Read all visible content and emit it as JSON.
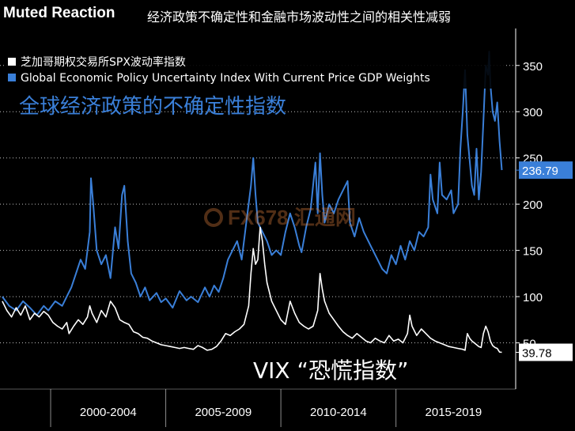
{
  "header": {
    "title_en": "Muted Reaction",
    "title_cn": "经济政策不确定性和金融市场波动性之间的相关性减弱"
  },
  "watermark": {
    "text": "FX678 汇通网"
  },
  "chart_data": {
    "type": "line",
    "title": "Muted Reaction",
    "subtitle": "经济政策不确定性和金融市场波动性之间的相关性减弱",
    "x_range": [
      1997.8,
      2020.2
    ],
    "ylim": [
      0,
      390
    ],
    "y_ticks": [
      50,
      100,
      150,
      200,
      250,
      300,
      350
    ],
    "x_period_labels": [
      "2000-2004",
      "2005-2009",
      "2010-2014",
      "2015-2019"
    ],
    "x_period_centers": [
      2002.5,
      2007.5,
      2012.5,
      2017.5
    ],
    "x_separators": [
      2000,
      2005,
      2010,
      2015
    ],
    "grid": true,
    "legend_position": "top-left",
    "colors": {
      "epu": "#3a7fd8",
      "vix": "#ffffff",
      "grid": "#ffffff"
    },
    "series": [
      {
        "name": "Global Economic Policy Uncertainty Index With Current Price GDP Weights",
        "color": "#3a7fd8",
        "last_value_label": "236.79",
        "points": [
          [
            1997.9,
            100
          ],
          [
            1998.2,
            90
          ],
          [
            1998.5,
            85
          ],
          [
            1998.8,
            95
          ],
          [
            1999.1,
            88
          ],
          [
            1999.4,
            80
          ],
          [
            1999.7,
            90
          ],
          [
            1999.9,
            85
          ],
          [
            2000.2,
            95
          ],
          [
            2000.5,
            90
          ],
          [
            2000.7,
            100
          ],
          [
            2000.9,
            110
          ],
          [
            2001.1,
            125
          ],
          [
            2001.3,
            140
          ],
          [
            2001.5,
            130
          ],
          [
            2001.7,
            170
          ],
          [
            2001.75,
            228
          ],
          [
            2001.85,
            200
          ],
          [
            2002.0,
            150
          ],
          [
            2002.2,
            135
          ],
          [
            2002.4,
            145
          ],
          [
            2002.6,
            120
          ],
          [
            2002.8,
            175
          ],
          [
            2002.95,
            152
          ],
          [
            2003.1,
            210
          ],
          [
            2003.2,
            220
          ],
          [
            2003.35,
            160
          ],
          [
            2003.5,
            125
          ],
          [
            2003.7,
            115
          ],
          [
            2003.9,
            100
          ],
          [
            2004.1,
            110
          ],
          [
            2004.3,
            96
          ],
          [
            2004.6,
            104
          ],
          [
            2004.8,
            94
          ],
          [
            2005.0,
            98
          ],
          [
            2005.3,
            88
          ],
          [
            2005.6,
            106
          ],
          [
            2005.9,
            96
          ],
          [
            2006.1,
            100
          ],
          [
            2006.4,
            94
          ],
          [
            2006.7,
            110
          ],
          [
            2006.9,
            100
          ],
          [
            2007.1,
            112
          ],
          [
            2007.3,
            105
          ],
          [
            2007.5,
            120
          ],
          [
            2007.7,
            140
          ],
          [
            2007.9,
            150
          ],
          [
            2008.1,
            160
          ],
          [
            2008.3,
            140
          ],
          [
            2008.5,
            180
          ],
          [
            2008.7,
            220
          ],
          [
            2008.8,
            250
          ],
          [
            2008.9,
            210
          ],
          [
            2009.0,
            180
          ],
          [
            2009.2,
            170
          ],
          [
            2009.4,
            160
          ],
          [
            2009.6,
            145
          ],
          [
            2009.8,
            150
          ],
          [
            2010.0,
            145
          ],
          [
            2010.2,
            170
          ],
          [
            2010.4,
            190
          ],
          [
            2010.6,
            175
          ],
          [
            2010.8,
            155
          ],
          [
            2010.9,
            148
          ],
          [
            2011.1,
            175
          ],
          [
            2011.3,
            195
          ],
          [
            2011.5,
            245
          ],
          [
            2011.6,
            190
          ],
          [
            2011.7,
            255
          ],
          [
            2011.8,
            210
          ],
          [
            2011.9,
            180
          ],
          [
            2012.1,
            200
          ],
          [
            2012.3,
            190
          ],
          [
            2012.5,
            205
          ],
          [
            2012.7,
            215
          ],
          [
            2012.9,
            225
          ],
          [
            2013.0,
            180
          ],
          [
            2013.2,
            165
          ],
          [
            2013.4,
            185
          ],
          [
            2013.6,
            170
          ],
          [
            2013.8,
            160
          ],
          [
            2014.0,
            150
          ],
          [
            2014.2,
            140
          ],
          [
            2014.4,
            130
          ],
          [
            2014.6,
            125
          ],
          [
            2014.8,
            145
          ],
          [
            2015.0,
            135
          ],
          [
            2015.2,
            155
          ],
          [
            2015.4,
            140
          ],
          [
            2015.6,
            160
          ],
          [
            2015.8,
            150
          ],
          [
            2016.0,
            170
          ],
          [
            2016.2,
            165
          ],
          [
            2016.4,
            175
          ],
          [
            2016.5,
            232
          ],
          [
            2016.6,
            205
          ],
          [
            2016.8,
            190
          ],
          [
            2016.9,
            245
          ],
          [
            2017.0,
            210
          ],
          [
            2017.2,
            205
          ],
          [
            2017.4,
            215
          ],
          [
            2017.5,
            190
          ],
          [
            2017.7,
            200
          ],
          [
            2017.8,
            260
          ],
          [
            2017.9,
            300
          ],
          [
            2018.0,
            345
          ],
          [
            2018.1,
            275
          ],
          [
            2018.3,
            220
          ],
          [
            2018.4,
            210
          ],
          [
            2018.5,
            260
          ],
          [
            2018.6,
            205
          ],
          [
            2018.7,
            235
          ],
          [
            2018.8,
            290
          ],
          [
            2018.9,
            350
          ],
          [
            2019.0,
            340
          ],
          [
            2019.05,
            365
          ],
          [
            2019.1,
            330
          ],
          [
            2019.2,
            300
          ],
          [
            2019.3,
            290
          ],
          [
            2019.4,
            310
          ],
          [
            2019.5,
            268
          ],
          [
            2019.6,
            236.79
          ]
        ]
      },
      {
        "name": "芝加哥期权交易所SPX波动率指数",
        "color": "#ffffff",
        "last_value_label": "39.78",
        "points": [
          [
            1997.9,
            95
          ],
          [
            1998.1,
            85
          ],
          [
            1998.3,
            78
          ],
          [
            1998.5,
            88
          ],
          [
            1998.7,
            80
          ],
          [
            1998.9,
            90
          ],
          [
            1999.1,
            75
          ],
          [
            1999.3,
            82
          ],
          [
            1999.5,
            78
          ],
          [
            1999.7,
            84
          ],
          [
            1999.9,
            80
          ],
          [
            2000.1,
            72
          ],
          [
            2000.3,
            68
          ],
          [
            2000.5,
            65
          ],
          [
            2000.7,
            72
          ],
          [
            2000.8,
            60
          ],
          [
            2001.0,
            68
          ],
          [
            2001.2,
            75
          ],
          [
            2001.4,
            70
          ],
          [
            2001.6,
            78
          ],
          [
            2001.7,
            90
          ],
          [
            2001.8,
            82
          ],
          [
            2002.0,
            72
          ],
          [
            2002.2,
            85
          ],
          [
            2002.4,
            78
          ],
          [
            2002.6,
            95
          ],
          [
            2002.8,
            88
          ],
          [
            2003.0,
            75
          ],
          [
            2003.2,
            72
          ],
          [
            2003.4,
            70
          ],
          [
            2003.6,
            62
          ],
          [
            2003.8,
            60
          ],
          [
            2004.0,
            56
          ],
          [
            2004.2,
            55
          ],
          [
            2004.4,
            52
          ],
          [
            2004.6,
            50
          ],
          [
            2004.8,
            48
          ],
          [
            2005.0,
            47
          ],
          [
            2005.2,
            46
          ],
          [
            2005.4,
            45
          ],
          [
            2005.6,
            44
          ],
          [
            2005.8,
            45
          ],
          [
            2006.0,
            44
          ],
          [
            2006.2,
            43
          ],
          [
            2006.4,
            47
          ],
          [
            2006.6,
            45
          ],
          [
            2006.8,
            42
          ],
          [
            2007.0,
            43
          ],
          [
            2007.2,
            46
          ],
          [
            2007.4,
            52
          ],
          [
            2007.6,
            60
          ],
          [
            2007.8,
            58
          ],
          [
            2008.0,
            62
          ],
          [
            2008.2,
            65
          ],
          [
            2008.4,
            70
          ],
          [
            2008.6,
            90
          ],
          [
            2008.7,
            125
          ],
          [
            2008.8,
            152
          ],
          [
            2008.9,
            135
          ],
          [
            2009.0,
            140
          ],
          [
            2009.1,
            175
          ],
          [
            2009.2,
            160
          ],
          [
            2009.3,
            135
          ],
          [
            2009.4,
            115
          ],
          [
            2009.6,
            95
          ],
          [
            2009.8,
            85
          ],
          [
            2010.0,
            75
          ],
          [
            2010.2,
            70
          ],
          [
            2010.4,
            95
          ],
          [
            2010.6,
            82
          ],
          [
            2010.8,
            72
          ],
          [
            2011.0,
            68
          ],
          [
            2011.2,
            65
          ],
          [
            2011.4,
            68
          ],
          [
            2011.6,
            85
          ],
          [
            2011.7,
            125
          ],
          [
            2011.8,
            108
          ],
          [
            2011.9,
            95
          ],
          [
            2012.1,
            82
          ],
          [
            2012.3,
            75
          ],
          [
            2012.5,
            68
          ],
          [
            2012.7,
            62
          ],
          [
            2012.9,
            58
          ],
          [
            2013.1,
            55
          ],
          [
            2013.3,
            60
          ],
          [
            2013.5,
            56
          ],
          [
            2013.7,
            52
          ],
          [
            2013.9,
            50
          ],
          [
            2014.1,
            55
          ],
          [
            2014.3,
            52
          ],
          [
            2014.5,
            50
          ],
          [
            2014.7,
            58
          ],
          [
            2014.9,
            52
          ],
          [
            2015.1,
            54
          ],
          [
            2015.3,
            50
          ],
          [
            2015.5,
            60
          ],
          [
            2015.6,
            80
          ],
          [
            2015.7,
            68
          ],
          [
            2015.9,
            58
          ],
          [
            2016.1,
            65
          ],
          [
            2016.3,
            60
          ],
          [
            2016.5,
            55
          ],
          [
            2016.7,
            52
          ],
          [
            2016.9,
            50
          ],
          [
            2017.1,
            48
          ],
          [
            2017.3,
            46
          ],
          [
            2017.5,
            45
          ],
          [
            2017.7,
            44
          ],
          [
            2017.9,
            43
          ],
          [
            2018.0,
            42
          ],
          [
            2018.1,
            60
          ],
          [
            2018.2,
            55
          ],
          [
            2018.3,
            52
          ],
          [
            2018.4,
            50
          ],
          [
            2018.5,
            48
          ],
          [
            2018.6,
            46
          ],
          [
            2018.7,
            45
          ],
          [
            2018.8,
            60
          ],
          [
            2018.9,
            68
          ],
          [
            2019.0,
            62
          ],
          [
            2019.1,
            52
          ],
          [
            2019.2,
            47
          ],
          [
            2019.3,
            45
          ],
          [
            2019.4,
            44
          ],
          [
            2019.5,
            40
          ],
          [
            2019.6,
            39.78
          ]
        ]
      }
    ],
    "legend": [
      {
        "label": "芝加哥期权交易所SPX波动率指数",
        "color": "#ffffff"
      },
      {
        "label": "Global Economic Policy Uncertainty Index With Current Price GDP Weights",
        "color": "#3a7fd8"
      }
    ],
    "annotations": [
      {
        "text": "全球经济政策的不确定性指数",
        "color": "#3a7fd8"
      },
      {
        "text": "VIX “恐慌指数”",
        "color": "#ffffff"
      }
    ]
  }
}
